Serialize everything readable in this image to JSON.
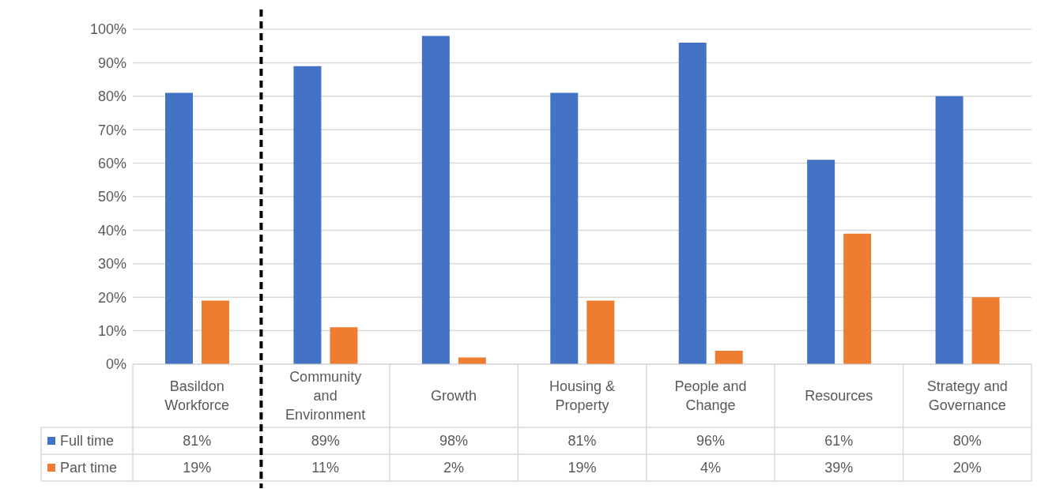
{
  "chart_data": {
    "type": "bar",
    "categories": [
      "Basildon Workforce",
      "Community and Environment",
      "Growth",
      "Housing & Property",
      "People and Change",
      "Resources",
      "Strategy and Governance"
    ],
    "series": [
      {
        "name": "Full time",
        "color": "#4472c4",
        "values": [
          81,
          89,
          98,
          81,
          96,
          61,
          80
        ],
        "value_labels": [
          "81%",
          "89%",
          "98%",
          "81%",
          "96%",
          "61%",
          "80%"
        ]
      },
      {
        "name": "Part time",
        "color": "#ed7d31",
        "values": [
          19,
          11,
          2,
          19,
          4,
          39,
          20
        ],
        "value_labels": [
          "19%",
          "11%",
          "2%",
          "19%",
          "4%",
          "39%",
          "20%"
        ]
      }
    ],
    "ylim": [
      0,
      100
    ],
    "yticks": [
      {
        "value": 0,
        "label": "0%"
      },
      {
        "value": 10,
        "label": "10%"
      },
      {
        "value": 20,
        "label": "20%"
      },
      {
        "value": 30,
        "label": "30%"
      },
      {
        "value": 40,
        "label": "40%"
      },
      {
        "value": 50,
        "label": "50%"
      },
      {
        "value": 60,
        "label": "60%"
      },
      {
        "value": 70,
        "label": "70%"
      },
      {
        "value": 80,
        "label": "80%"
      },
      {
        "value": 90,
        "label": "90%"
      },
      {
        "value": 100,
        "label": "100%"
      }
    ],
    "grid": "y",
    "legend": "bottom"
  }
}
